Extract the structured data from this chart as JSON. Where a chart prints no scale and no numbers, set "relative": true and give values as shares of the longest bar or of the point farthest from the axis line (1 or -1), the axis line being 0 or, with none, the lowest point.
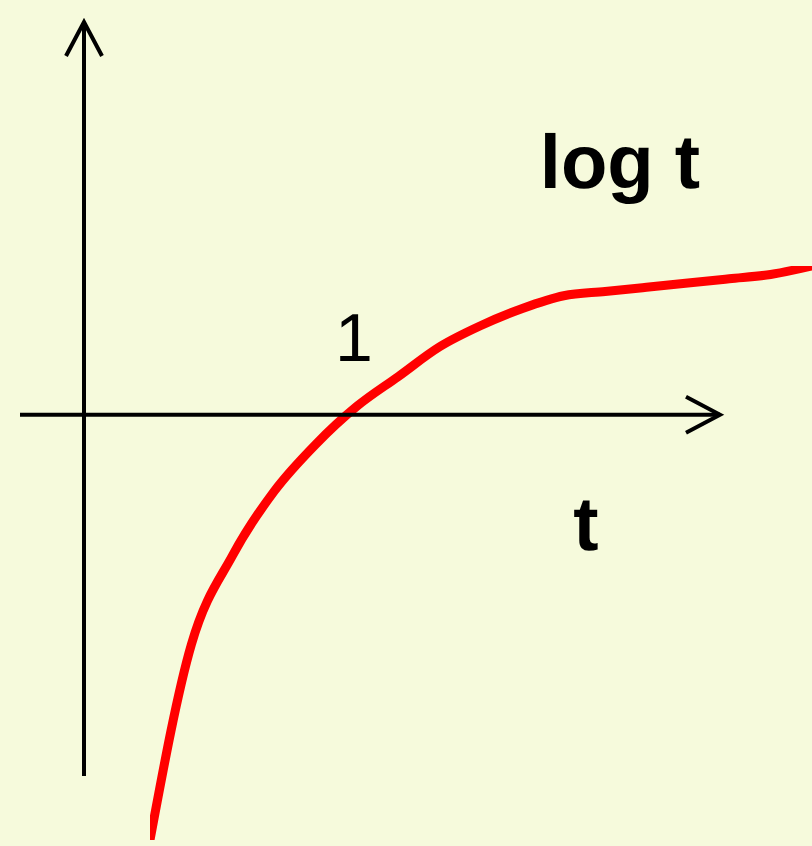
{
  "chart_data": {
    "type": "line",
    "relative": true,
    "xlabel": "t",
    "ylabel": "log t",
    "annotations": [
      "1"
    ],
    "categories": [
      null,
      null,
      null,
      null,
      null,
      null,
      null,
      null,
      null,
      null,
      null,
      null,
      null,
      null,
      null,
      null,
      null
    ],
    "series": [
      {
        "color": "#ff0000",
        "values": [
          -1.0,
          -0.54,
          -0.33,
          -0.18,
          -0.07,
          0.02,
          0.09,
          0.16,
          0.21,
          0.25,
          0.28,
          0.29,
          0.3,
          0.31,
          0.32,
          0.33,
          0.35
        ]
      }
    ],
    "marker": "none",
    "line_style": "solid"
  }
}
